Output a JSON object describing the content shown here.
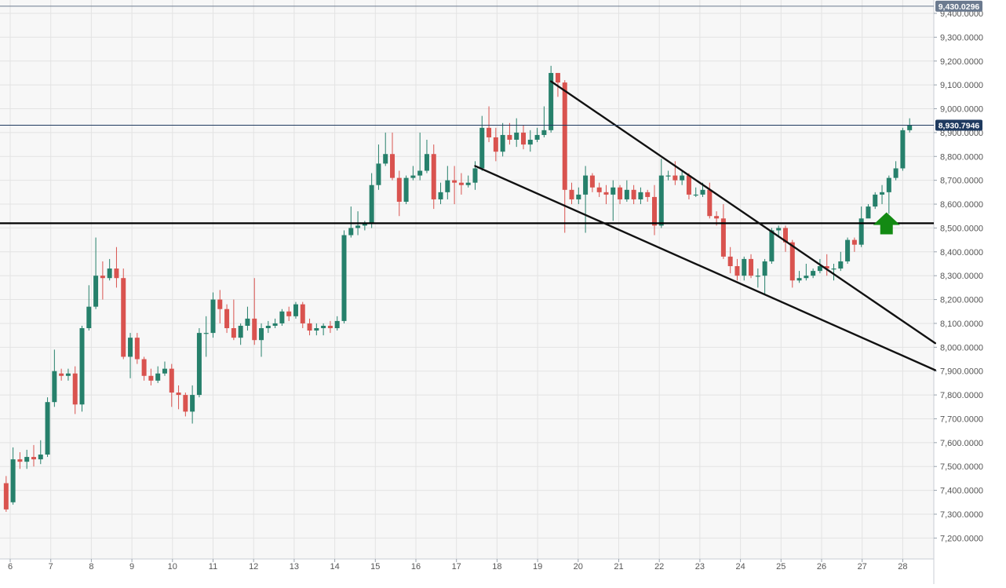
{
  "chart_data": {
    "type": "candlestick",
    "x_tick_labels": [
      "6",
      "7",
      "8",
      "9",
      "10",
      "11",
      "12",
      "13",
      "14",
      "15",
      "16",
      "17",
      "18",
      "19",
      "20",
      "21",
      "22",
      "23",
      "24",
      "25",
      "26",
      "27",
      "28"
    ],
    "y_tick_labels": [
      "9,400.0000",
      "9,300.0000",
      "9,200.0000",
      "9,100.0000",
      "9,000.0000",
      "8,900.0000",
      "8,800.0000",
      "8,700.0000",
      "8,600.0000",
      "8,500.0000",
      "8,400.0000",
      "8,300.0000",
      "8,200.0000",
      "8,100.0000",
      "8,000.0000",
      "7,900.0000",
      "7,800.0000",
      "7,700.0000",
      "7,600.0000",
      "7,500.0000",
      "7,400.0000",
      "7,300.0000",
      "7,200.0000"
    ],
    "ylim": [
      7120,
      9460
    ],
    "xlim": [
      5.77,
      28.8
    ],
    "price_labels": [
      {
        "text": "9,430.0296",
        "value": 9430.0296,
        "color": "#6b7a8f"
      },
      {
        "text": "8,930.7946",
        "value": 8930.7946,
        "color": "#1f3a5f"
      }
    ],
    "candles": [
      [
        5.9,
        7430,
        7320,
        7460,
        7310
      ],
      [
        6.07,
        7350,
        7530,
        7580,
        7340
      ],
      [
        6.24,
        7530,
        7520,
        7560,
        7490
      ],
      [
        6.41,
        7520,
        7540,
        7570,
        7490
      ],
      [
        6.58,
        7540,
        7530,
        7590,
        7500
      ],
      [
        6.75,
        7530,
        7550,
        7610,
        7510
      ],
      [
        6.92,
        7550,
        7770,
        7790,
        7540
      ],
      [
        7.09,
        7770,
        7900,
        7990,
        7750
      ],
      [
        7.26,
        7890,
        7880,
        7910,
        7860
      ],
      [
        7.43,
        7880,
        7890,
        7910,
        7860
      ],
      [
        7.6,
        7890,
        7760,
        7920,
        7720
      ],
      [
        7.77,
        7760,
        8080,
        8090,
        7730
      ],
      [
        7.94,
        8080,
        8170,
        8260,
        8070
      ],
      [
        8.11,
        8170,
        8300,
        8460,
        8160
      ],
      [
        8.28,
        8300,
        8290,
        8360,
        8200
      ],
      [
        8.45,
        8290,
        8330,
        8370,
        8280
      ],
      [
        8.62,
        8330,
        8290,
        8420,
        8250
      ],
      [
        8.79,
        8290,
        7960,
        8330,
        7950
      ],
      [
        8.96,
        7960,
        8040,
        8060,
        7870
      ],
      [
        9.13,
        8040,
        7950,
        8060,
        7930
      ],
      [
        9.3,
        7950,
        7880,
        7960,
        7860
      ],
      [
        9.47,
        7880,
        7860,
        7910,
        7840
      ],
      [
        9.64,
        7860,
        7890,
        7920,
        7850
      ],
      [
        9.81,
        7890,
        7910,
        7940,
        7880
      ],
      [
        9.98,
        7910,
        7810,
        7930,
        7750
      ],
      [
        10.15,
        7810,
        7800,
        7840,
        7740
      ],
      [
        10.32,
        7800,
        7730,
        7810,
        7710
      ],
      [
        10.49,
        7730,
        7800,
        7840,
        7680
      ],
      [
        10.66,
        7800,
        8060,
        8080,
        7790
      ],
      [
        10.83,
        8060,
        8060,
        8130,
        7960
      ],
      [
        11.0,
        8060,
        8200,
        8230,
        8040
      ],
      [
        11.17,
        8200,
        8160,
        8240,
        8100
      ],
      [
        11.34,
        8160,
        8080,
        8180,
        8060
      ],
      [
        11.51,
        8080,
        8040,
        8200,
        8030
      ],
      [
        11.68,
        8040,
        8090,
        8100,
        8010
      ],
      [
        11.85,
        8090,
        8120,
        8170,
        8070
      ],
      [
        12.02,
        8120,
        8030,
        8290,
        8010
      ],
      [
        12.19,
        8030,
        8080,
        8100,
        7960
      ],
      [
        12.36,
        8080,
        8090,
        8110,
        8060
      ],
      [
        12.53,
        8090,
        8100,
        8120,
        8080
      ],
      [
        12.7,
        8100,
        8150,
        8160,
        8090
      ],
      [
        12.87,
        8150,
        8130,
        8170,
        8110
      ],
      [
        13.04,
        8130,
        8180,
        8190,
        8120
      ],
      [
        13.21,
        8180,
        8100,
        8190,
        8080
      ],
      [
        13.38,
        8100,
        8070,
        8120,
        8050
      ],
      [
        13.55,
        8070,
        8080,
        8100,
        8050
      ],
      [
        13.72,
        8080,
        8090,
        8100,
        8050
      ],
      [
        13.89,
        8090,
        8080,
        8110,
        8060
      ],
      [
        14.06,
        8080,
        8110,
        8130,
        8070
      ],
      [
        14.23,
        8110,
        8470,
        8490,
        8100
      ],
      [
        14.4,
        8470,
        8500,
        8590,
        8460
      ],
      [
        14.57,
        8500,
        8510,
        8570,
        8470
      ],
      [
        14.74,
        8510,
        8520,
        8530,
        8490
      ],
      [
        14.91,
        8520,
        8680,
        8730,
        8500
      ],
      [
        15.08,
        8680,
        8770,
        8850,
        8660
      ],
      [
        15.25,
        8770,
        8810,
        8900,
        8760
      ],
      [
        15.42,
        8810,
        8710,
        8900,
        8700
      ],
      [
        15.59,
        8710,
        8610,
        8740,
        8550
      ],
      [
        15.76,
        8610,
        8710,
        8720,
        8600
      ],
      [
        15.93,
        8710,
        8720,
        8760,
        8700
      ],
      [
        16.1,
        8720,
        8740,
        8900,
        8700
      ],
      [
        16.27,
        8740,
        8810,
        8870,
        8730
      ],
      [
        16.44,
        8810,
        8620,
        8850,
        8580
      ],
      [
        16.61,
        8620,
        8650,
        8690,
        8600
      ],
      [
        16.78,
        8650,
        8700,
        8760,
        8620
      ],
      [
        16.95,
        8700,
        8690,
        8760,
        8600
      ],
      [
        17.12,
        8690,
        8680,
        8730,
        8640
      ],
      [
        17.29,
        8680,
        8690,
        8720,
        8670
      ],
      [
        17.46,
        8690,
        8750,
        8780,
        8660
      ],
      [
        17.63,
        8750,
        8920,
        8970,
        8740
      ],
      [
        17.8,
        8920,
        8880,
        9010,
        8860
      ],
      [
        17.97,
        8880,
        8820,
        8920,
        8780
      ],
      [
        18.14,
        8820,
        8890,
        8940,
        8800
      ],
      [
        18.31,
        8890,
        8870,
        8940,
        8850
      ],
      [
        18.48,
        8870,
        8900,
        8960,
        8840
      ],
      [
        18.65,
        8900,
        8850,
        8930,
        8830
      ],
      [
        18.82,
        8850,
        8870,
        8910,
        8820
      ],
      [
        18.99,
        8870,
        8890,
        8920,
        8860
      ],
      [
        19.16,
        8890,
        8910,
        9010,
        8880
      ],
      [
        19.33,
        8910,
        9150,
        9180,
        8900
      ],
      [
        19.5,
        9150,
        9110,
        9150,
        9050
      ],
      [
        19.67,
        9110,
        8660,
        9120,
        8480
      ],
      [
        19.84,
        8660,
        8620,
        8690,
        8600
      ],
      [
        20.01,
        8620,
        8640,
        8670,
        8600
      ],
      [
        20.18,
        8640,
        8720,
        8760,
        8480
      ],
      [
        20.35,
        8720,
        8670,
        8730,
        8650
      ],
      [
        20.52,
        8670,
        8650,
        8690,
        8630
      ],
      [
        20.69,
        8650,
        8640,
        8680,
        8600
      ],
      [
        20.86,
        8640,
        8670,
        8700,
        8530
      ],
      [
        21.03,
        8670,
        8620,
        8680,
        8600
      ],
      [
        21.2,
        8620,
        8660,
        8700,
        8610
      ],
      [
        21.37,
        8660,
        8620,
        8680,
        8600
      ],
      [
        21.54,
        8620,
        8650,
        8670,
        8600
      ],
      [
        21.71,
        8650,
        8630,
        8660,
        8610
      ],
      [
        21.88,
        8630,
        8510,
        8680,
        8470
      ],
      [
        22.05,
        8510,
        8720,
        8790,
        8500
      ],
      [
        22.22,
        8720,
        8720,
        8740,
        8700
      ],
      [
        22.39,
        8720,
        8700,
        8780,
        8680
      ],
      [
        22.56,
        8700,
        8720,
        8740,
        8680
      ],
      [
        22.73,
        8720,
        8640,
        8730,
        8620
      ],
      [
        22.9,
        8640,
        8640,
        8670,
        8630
      ],
      [
        23.07,
        8640,
        8660,
        8690,
        8630
      ],
      [
        23.24,
        8660,
        8550,
        8690,
        8540
      ],
      [
        23.41,
        8550,
        8540,
        8570,
        8510
      ],
      [
        23.58,
        8540,
        8380,
        8600,
        8370
      ],
      [
        23.75,
        8380,
        8340,
        8420,
        8310
      ],
      [
        23.92,
        8340,
        8300,
        8370,
        8280
      ],
      [
        24.09,
        8300,
        8370,
        8380,
        8280
      ],
      [
        24.26,
        8370,
        8300,
        8390,
        8290
      ],
      [
        24.43,
        8300,
        8300,
        8330,
        8250
      ],
      [
        24.6,
        8300,
        8360,
        8370,
        8220
      ],
      [
        24.77,
        8360,
        8490,
        8500,
        8350
      ],
      [
        24.94,
        8490,
        8500,
        8510,
        8460
      ],
      [
        25.11,
        8500,
        8440,
        8510,
        8400
      ],
      [
        25.28,
        8440,
        8280,
        8450,
        8250
      ],
      [
        25.45,
        8280,
        8290,
        8320,
        8270
      ],
      [
        25.62,
        8290,
        8300,
        8350,
        8280
      ],
      [
        25.79,
        8300,
        8320,
        8330,
        8290
      ],
      [
        25.96,
        8320,
        8340,
        8370,
        8310
      ],
      [
        26.13,
        8340,
        8330,
        8390,
        8300
      ],
      [
        26.3,
        8330,
        8330,
        8350,
        8280
      ],
      [
        26.47,
        8330,
        8360,
        8400,
        8320
      ],
      [
        26.64,
        8360,
        8450,
        8460,
        8350
      ],
      [
        26.81,
        8450,
        8430,
        8460,
        8400
      ],
      [
        26.98,
        8430,
        8540,
        8590,
        8420
      ],
      [
        27.15,
        8540,
        8590,
        8600,
        8550
      ],
      [
        27.32,
        8590,
        8640,
        8650,
        8580
      ],
      [
        27.49,
        8640,
        8650,
        8680,
        8600
      ],
      [
        27.66,
        8650,
        8710,
        8720,
        8560
      ],
      [
        27.83,
        8710,
        8750,
        8780,
        8700
      ],
      [
        28.0,
        8750,
        8910,
        8920,
        8740
      ],
      [
        28.17,
        8910,
        8930,
        8960,
        8900
      ]
    ],
    "horizontal_lines": [
      {
        "value": 8520,
        "color": "#000000",
        "label": ""
      }
    ],
    "trendlines": [
      {
        "x1": 19.33,
        "y1": 9115,
        "x2": 28.8,
        "y2": 8017
      },
      {
        "x1": 17.46,
        "y1": 8760,
        "x2": 28.8,
        "y2": 7904
      }
    ],
    "annotations": [
      {
        "kind": "arrow-up",
        "x": 27.6,
        "y": 8480,
        "color": "#138a13"
      }
    ],
    "colors": {
      "up": "#26806b",
      "down": "#d9534f",
      "background": "#f7f7f7",
      "grid": "#e3e3e3"
    },
    "grid": true
  }
}
